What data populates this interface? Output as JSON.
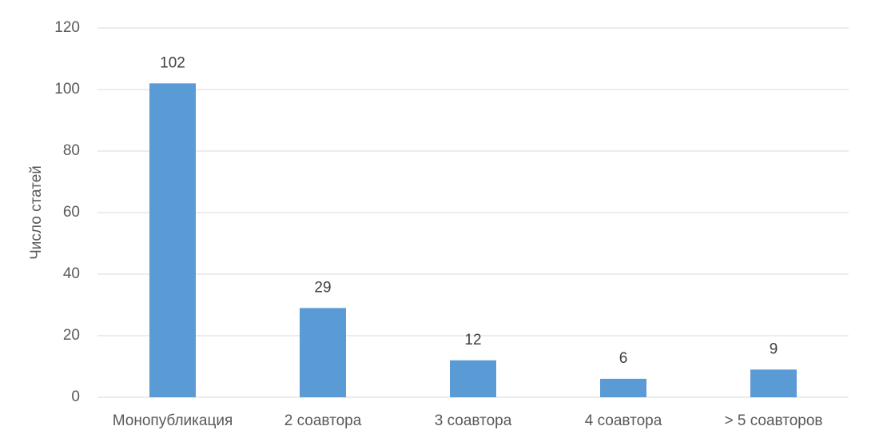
{
  "chart_data": {
    "type": "bar",
    "y_label": "Число статей",
    "categories": [
      "Монопубликация",
      "2 соавтора",
      "3 соавтора",
      "4 соавтора",
      "> 5 соавторов"
    ],
    "values": [
      102,
      29,
      12,
      6,
      9
    ],
    "color": "#5b9bd5",
    "ylim": [
      0,
      120
    ],
    "yticks": [
      0,
      20,
      40,
      60,
      80,
      100,
      120
    ],
    "grid": true
  }
}
